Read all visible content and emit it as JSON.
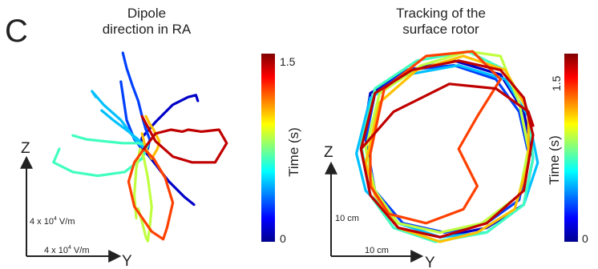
{
  "panel_label": "C",
  "left_panel": {
    "title_line1": "Dipole",
    "title_line2": "direction in RA",
    "axis_z": "Z",
    "axis_y": "Y",
    "scale_vertical": {
      "prefix": "4 x 10",
      "exp": "4",
      "unit": " V/m"
    },
    "scale_horizontal": {
      "prefix": "4 x 10",
      "exp": "4",
      "unit": " V/m"
    },
    "colorbar": {
      "label": "Time (s)",
      "tick_top": "1.5",
      "tick_bottom": "0"
    }
  },
  "right_panel": {
    "title_line1": "Tracking of the",
    "title_line2": "surface rotor",
    "axis_z": "Z",
    "axis_y": "Y",
    "scale_vertical": "10 cm",
    "scale_horizontal": "10 cm",
    "colorbar": {
      "label": "Time (s)",
      "tick_top": "1.5",
      "tick_bottom": "0"
    }
  },
  "colors": {
    "colormap": [
      "#00008f",
      "#0000ff",
      "#0080ff",
      "#00ffff",
      "#80ff80",
      "#ffff00",
      "#ff8000",
      "#ff0000",
      "#800000"
    ]
  },
  "chart_data": [
    {
      "type": "line",
      "title": "Dipole direction in RA",
      "xlabel": "Y",
      "ylabel": "Z",
      "color_variable": "Time (s)",
      "color_range": [
        0,
        1.6
      ],
      "colorbar_ticks": [
        0,
        1.5
      ],
      "series": [
        {
          "time": [
            0,
            0.2
          ],
          "y": [
            25,
            20,
            12,
            8,
            5,
            1,
            -3,
            -2,
            5,
            14,
            22,
            26,
            27
          ],
          "z": [
            -29,
            -25,
            -17,
            -12,
            -8,
            -3,
            1,
            6,
            14,
            23,
            27,
            28,
            25
          ]
        },
        {
          "time": [
            0.2,
            0.4
          ],
          "y": [
            -12,
            -10,
            -7,
            -4,
            -2,
            0,
            2,
            1,
            -2,
            -6,
            -10,
            -13
          ],
          "z": [
            50,
            42,
            33,
            25,
            17,
            10,
            5,
            0,
            0,
            5,
            15,
            35
          ]
        },
        {
          "time": [
            0.4,
            0.6
          ],
          "y": [
            -23,
            -17,
            -9,
            -3,
            0,
            -4,
            -13,
            -22,
            -28,
            -26
          ],
          "z": [
            20,
            15,
            9,
            4,
            0,
            3,
            15,
            23,
            30,
            27
          ]
        },
        {
          "time": [
            0.6,
            0.8
          ],
          "y": [
            -38,
            -31,
            -22,
            -12,
            -4,
            1,
            -2,
            -11,
            -25,
            -38,
            -48,
            -45
          ],
          "z": [
            7,
            5,
            4,
            3,
            3,
            2,
            -5,
            -12,
            -14,
            -12,
            -7,
            0
          ]
        },
        {
          "time": [
            0.8,
            1.0
          ],
          "y": [
            -4,
            -2,
            0,
            1,
            2,
            3,
            1,
            -1,
            -3,
            -5,
            -6,
            -5
          ],
          "z": [
            -31,
            -38,
            -46,
            -48,
            -41,
            -30,
            -15,
            -5,
            0,
            -10,
            -24,
            -36
          ]
        },
        {
          "time": [
            1.0,
            1.2
          ],
          "y": [
            0,
            2,
            4,
            6,
            7,
            6,
            3,
            0,
            -2
          ],
          "z": [
            17,
            13,
            10,
            6,
            4,
            0,
            -5,
            0,
            8
          ]
        },
        {
          "time": [
            1.2,
            1.4
          ],
          "y": [
            -1,
            -6,
            -9,
            -6,
            3,
            9,
            11,
            14,
            10,
            4,
            -1
          ],
          "z": [
            0,
            -7,
            -17,
            -30,
            -43,
            -47,
            -41,
            -28,
            -15,
            -5,
            0
          ]
        },
        {
          "time": [
            1.4,
            1.6
          ],
          "y": [
            -1,
            5,
            13,
            19,
            22,
            29,
            38,
            42,
            36,
            24,
            14,
            5,
            -2
          ],
          "z": [
            0,
            8,
            10,
            9,
            10,
            9,
            10,
            3,
            -7,
            -7,
            -4,
            4,
            17
          ]
        }
      ]
    },
    {
      "type": "line",
      "title": "Tracking of the surface rotor",
      "xlabel": "Y",
      "ylabel": "Z",
      "color_variable": "Time (s)",
      "color_range": [
        0,
        1.6
      ],
      "colorbar_ticks": [
        0,
        1.5
      ],
      "series": [
        {
          "time": [
            0,
            0.2
          ],
          "y": [
            -17,
            -15,
            -7,
            3,
            13,
            18,
            20,
            18,
            10,
            0,
            -9,
            -15,
            -17
          ],
          "z": [
            0,
            12,
            17,
            19,
            16,
            8,
            -2,
            -12,
            -17,
            -19,
            -17,
            -10,
            0
          ]
        },
        {
          "time": [
            0.2,
            0.4
          ],
          "y": [
            -16,
            -14,
            -7,
            3,
            12,
            17,
            19,
            17,
            10,
            1,
            -8,
            -14,
            -16
          ],
          "z": [
            2,
            12,
            17,
            18,
            15,
            8,
            -1,
            -11,
            -16,
            -18,
            -16,
            -9,
            2
          ]
        },
        {
          "time": [
            0.4,
            0.6
          ],
          "y": [
            -18,
            -15,
            -7,
            4,
            14,
            19,
            21,
            18,
            10,
            0,
            -9,
            -16,
            -18
          ],
          "z": [
            -1,
            11,
            16,
            18,
            15,
            7,
            -3,
            -12,
            -18,
            -19,
            -16,
            -9,
            -1
          ]
        },
        {
          "time": [
            0.6,
            0.8
          ],
          "y": [
            -17,
            -14,
            -5,
            6,
            14,
            19,
            20,
            18,
            10,
            -1,
            -10,
            -15,
            -17
          ],
          "z": [
            1,
            13,
            19,
            21,
            17,
            8,
            -2,
            -12,
            -18,
            -20,
            -17,
            -10,
            1
          ]
        },
        {
          "time": [
            0.8,
            1.0
          ],
          "y": [
            -16,
            -13,
            -4,
            6,
            13,
            17,
            19,
            17,
            9,
            0,
            -9,
            -14,
            -16
          ],
          "z": [
            0,
            12,
            18,
            21,
            20,
            10,
            0,
            -10,
            -16,
            -18,
            -16,
            -9,
            0
          ]
        },
        {
          "time": [
            1.0,
            1.2
          ],
          "y": [
            -16,
            -13,
            -5,
            5,
            14,
            19,
            19,
            16,
            8,
            0,
            -9,
            -14,
            -16
          ],
          "z": [
            -3,
            10,
            17,
            20,
            17,
            8,
            -3,
            -13,
            -18,
            -20,
            -17,
            -10,
            -3
          ]
        },
        {
          "time": [
            1.2,
            1.4
          ],
          "y": [
            -15,
            -12,
            -3,
            7,
            13,
            8,
            4,
            8,
            5,
            -3,
            -11,
            -15,
            -15
          ],
          "z": [
            -1,
            13,
            20,
            21,
            15,
            7,
            0,
            -8,
            -13,
            -16,
            -14,
            -8,
            -1
          ]
        },
        {
          "time": [
            1.4,
            1.6
          ],
          "y": [
            -17,
            -14,
            -6,
            4,
            13,
            18,
            20,
            18,
            10,
            0,
            -9,
            -15,
            -17,
            -10,
            2,
            12,
            19,
            20
          ],
          "z": [
            0,
            12,
            17,
            19,
            17,
            11,
            3,
            -9,
            -16,
            -19,
            -17,
            -10,
            0,
            8,
            14,
            13,
            8,
            5
          ]
        }
      ]
    }
  ]
}
